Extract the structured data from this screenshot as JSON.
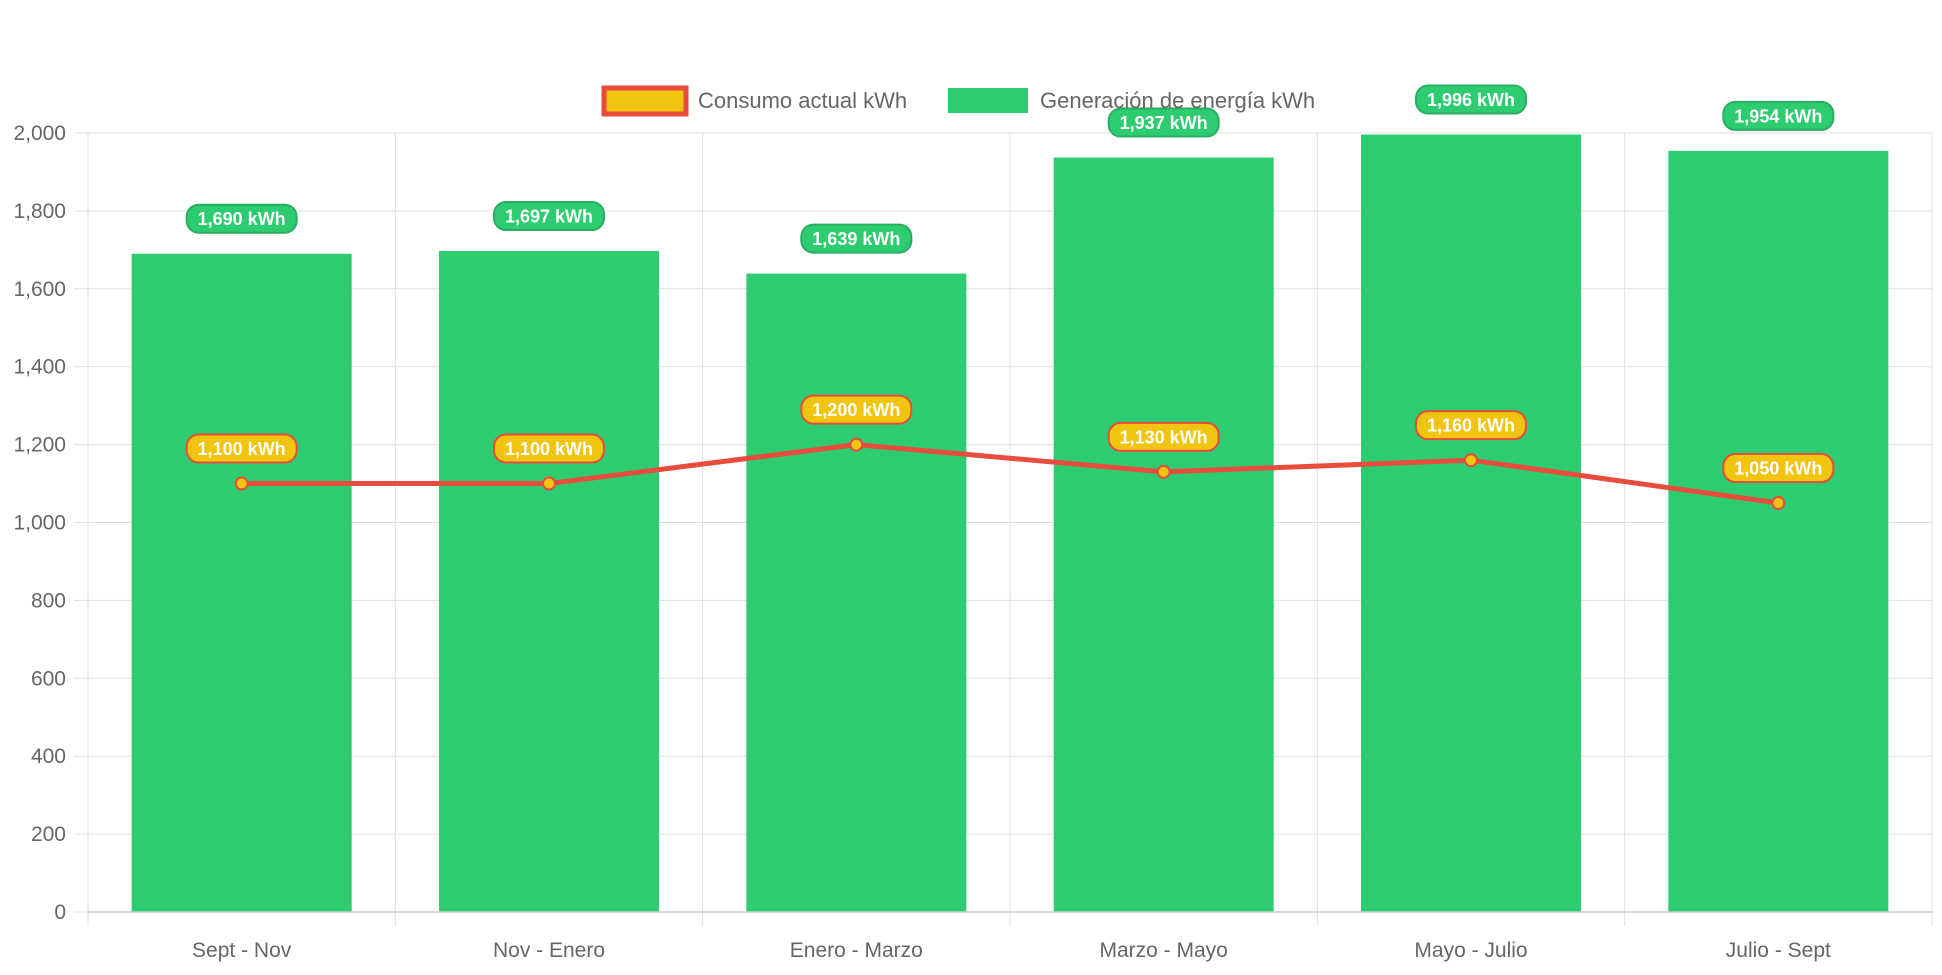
{
  "chart_data": {
    "type": "bar",
    "categories": [
      "Sept - Nov",
      "Nov - Enero",
      "Enero - Marzo",
      "Marzo - Mayo",
      "Mayo - Julio",
      "Julio - Sept"
    ],
    "series": [
      {
        "name": "Consumo actual kWh",
        "type": "line",
        "values": [
          1100,
          1100,
          1200,
          1130,
          1160,
          1050
        ],
        "data_labels": [
          "1,100 kWh",
          "1,100 kWh",
          "1,200 kWh",
          "1,130 kWh",
          "1,160 kWh",
          "1,050 kWh"
        ],
        "line_color": "#e74c3c",
        "fill_color": "#f1c40f"
      },
      {
        "name": "Generación de energía kWh",
        "type": "bar",
        "values": [
          1690,
          1697,
          1639,
          1937,
          1996,
          1954
        ],
        "data_labels": [
          "1,690 kWh",
          "1,697 kWh",
          "1,639 kWh",
          "1,937 kWh",
          "1,996 kWh",
          "1,954 kWh"
        ],
        "fill_color": "#2ecc71",
        "badge_border_color": "#27ae60"
      }
    ],
    "ylim": [
      0,
      2000
    ],
    "y_ticks": [
      0,
      200,
      400,
      600,
      800,
      1000,
      1200,
      1400,
      1600,
      1800,
      2000
    ],
    "y_tick_labels": [
      "0",
      "200",
      "400",
      "600",
      "800",
      "1,000",
      "1,200",
      "1,400",
      "1,600",
      "1,800",
      "2,000"
    ],
    "grid": true,
    "legend_position": "top",
    "grid_color": "#e0e0e0",
    "axis_color": "#cccccc",
    "tick_color": "#666666"
  }
}
